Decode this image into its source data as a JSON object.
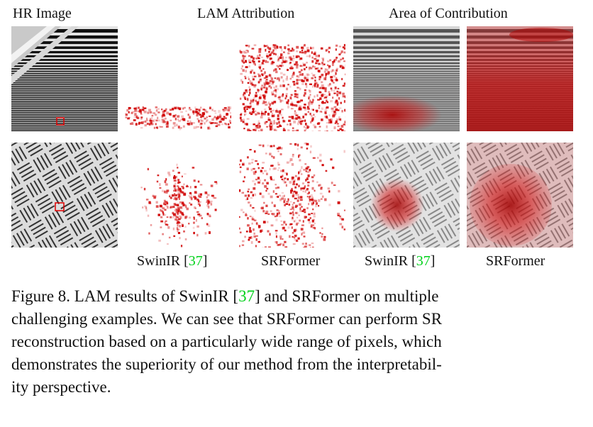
{
  "headers": {
    "hr": "HR Image",
    "lam": "LAM Attribution",
    "area": "Area of Contribution"
  },
  "labels": {
    "col2_name": "SwinIR",
    "col2_ref": "37",
    "col3_name": "SRFormer",
    "col4_name": "SwinIR",
    "col4_ref": "37",
    "col5_name": "SRFormer"
  },
  "caption": {
    "line1_a": "Figure 8. LAM results of SwinIR [",
    "line1_ref": "37",
    "line1_b": "] and SRFormer on multiple",
    "line2": "challenging examples. We can see that SRFormer can perform SR",
    "line3": "reconstruction based on a particularly wide range of pixels, which",
    "line4": "demonstrates the superiority of our method from the interpretabil-",
    "line5": "ity perspective."
  },
  "colors": {
    "attribution_red": "#d00000",
    "reference_green": "#00d11a",
    "marker_red": "#e00000"
  }
}
